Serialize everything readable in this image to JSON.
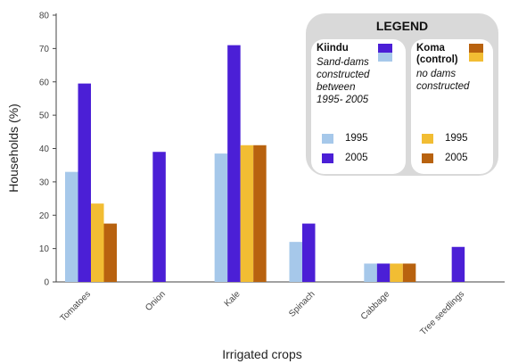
{
  "chart_data": {
    "type": "bar",
    "categories": [
      "Tomatoes",
      "Onion",
      "Kale",
      "Spinach",
      "Cabbage",
      "Tree seedlings"
    ],
    "series": [
      {
        "name": "1995",
        "site": "Kiindu",
        "color": "#a6c8ea",
        "values": [
          33,
          0,
          38.5,
          12,
          5.5,
          0
        ]
      },
      {
        "name": "2005",
        "site": "Kiindu",
        "color": "#4b1fd6",
        "values": [
          59.5,
          39,
          71,
          17.5,
          5.5,
          10.5
        ]
      },
      {
        "name": "1995",
        "site": "Koma",
        "color": "#f2bd33",
        "values": [
          23.5,
          0,
          41,
          0,
          5.5,
          0
        ]
      },
      {
        "name": "2005",
        "site": "Koma",
        "color": "#b8620f",
        "values": [
          17.5,
          0,
          41,
          0,
          5.5,
          0
        ]
      }
    ],
    "xlabel": "Irrigated crops",
    "ylabel": "Households (%)",
    "ylim": [
      0,
      80
    ],
    "yticks": [
      0,
      10,
      20,
      30,
      40,
      50,
      60,
      70,
      80
    ],
    "grid": false,
    "legend_position": "top-right"
  },
  "legend": {
    "title": "LEGEND",
    "kiindu": {
      "name": "Kiindu",
      "description": [
        "Sand-dams",
        "constructed",
        "between",
        "1995- 2005"
      ],
      "items": [
        {
          "label": "1995",
          "color": "#a6c8ea"
        },
        {
          "label": "2005",
          "color": "#4b1fd6"
        }
      ]
    },
    "koma": {
      "name": "Koma",
      "name_sub": "(control)",
      "description": [
        "no dams",
        "constructed"
      ],
      "items": [
        {
          "label": "1995",
          "color": "#f2bd33"
        },
        {
          "label": "2005",
          "color": "#b8620f"
        }
      ]
    }
  }
}
